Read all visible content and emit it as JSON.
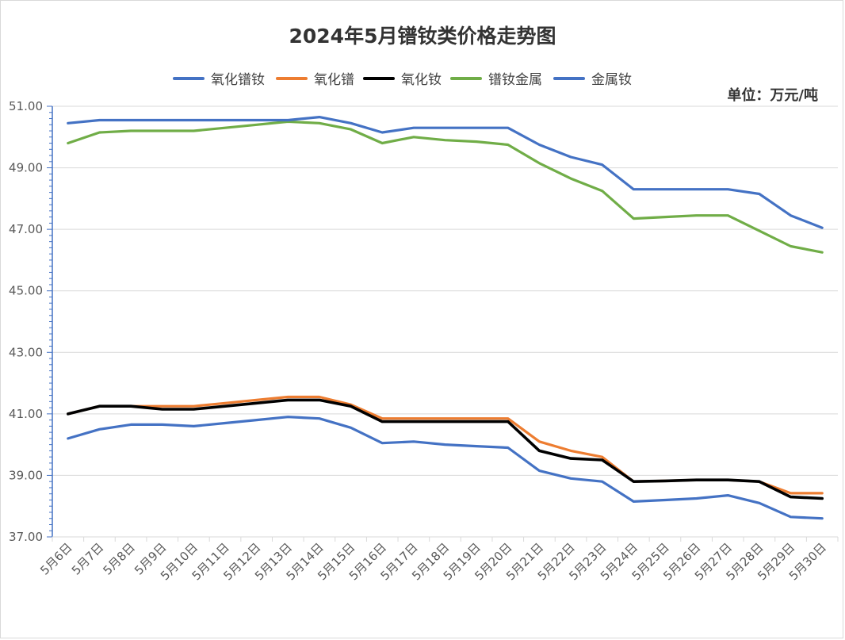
{
  "chart_data": {
    "type": "line",
    "title": "2024年5月镨钕类价格走势图",
    "unit": "单位：万元/吨",
    "ylim": [
      37.0,
      51.0
    ],
    "yticks": [
      "51.00",
      "49.00",
      "47.00",
      "45.00",
      "43.00",
      "41.00",
      "39.00",
      "37.00"
    ],
    "ytick_values": [
      51,
      49,
      47,
      45,
      43,
      41,
      39,
      37
    ],
    "grid": true,
    "legend_position": "top",
    "categories": [
      "5月6日",
      "5月7日",
      "5月8日",
      "5月9日",
      "5月10日",
      "5月11日",
      "5月12日",
      "5月13日",
      "5月14日",
      "5月15日",
      "5月16日",
      "5月17日",
      "5月18日",
      "5月19日",
      "5月20日",
      "5月21日",
      "5月22日",
      "5月23日",
      "5月24日",
      "5月25日",
      "5月26日",
      "5月27日",
      "5月28日",
      "5月29日",
      "5月30日"
    ],
    "series": [
      {
        "name": "氧化镨钕",
        "color": "#4472c4",
        "values": [
          40.2,
          40.5,
          40.65,
          40.65,
          40.6,
          40.7,
          40.8,
          40.9,
          40.85,
          40.55,
          40.05,
          40.1,
          40.0,
          39.95,
          39.9,
          39.15,
          38.9,
          38.8,
          38.15,
          38.2,
          38.25,
          38.35,
          38.1,
          37.65,
          37.6
        ]
      },
      {
        "name": "氧化镨",
        "color": "#ed7d31",
        "values": [
          41.0,
          41.25,
          41.25,
          41.25,
          41.25,
          41.35,
          41.45,
          41.55,
          41.55,
          41.3,
          40.85,
          40.85,
          40.85,
          40.85,
          40.85,
          40.1,
          39.8,
          39.6,
          38.8,
          38.82,
          38.85,
          38.85,
          38.8,
          38.42,
          38.42
        ]
      },
      {
        "name": "氧化钕",
        "color": "#000000",
        "values": [
          41.0,
          41.25,
          41.25,
          41.15,
          41.15,
          41.25,
          41.35,
          41.45,
          41.45,
          41.25,
          40.75,
          40.75,
          40.75,
          40.75,
          40.75,
          39.8,
          39.55,
          39.5,
          38.8,
          38.82,
          38.85,
          38.85,
          38.8,
          38.3,
          38.25
        ]
      },
      {
        "name": "镨钕金属",
        "color": "#70ad47",
        "values": [
          49.8,
          50.15,
          50.2,
          50.2,
          50.2,
          50.3,
          50.4,
          50.5,
          50.45,
          50.25,
          49.8,
          50.0,
          49.9,
          49.85,
          49.75,
          49.15,
          48.65,
          48.25,
          47.35,
          47.4,
          47.45,
          47.45,
          46.95,
          46.45,
          46.25
        ]
      },
      {
        "name": "金属钕",
        "color": "#4472c4",
        "values": [
          50.45,
          50.55,
          50.55,
          50.55,
          50.55,
          50.55,
          50.55,
          50.55,
          50.65,
          50.45,
          50.15,
          50.3,
          50.3,
          50.3,
          50.3,
          49.75,
          49.35,
          49.1,
          48.3,
          48.3,
          48.3,
          48.3,
          48.15,
          47.45,
          47.05
        ]
      }
    ]
  }
}
